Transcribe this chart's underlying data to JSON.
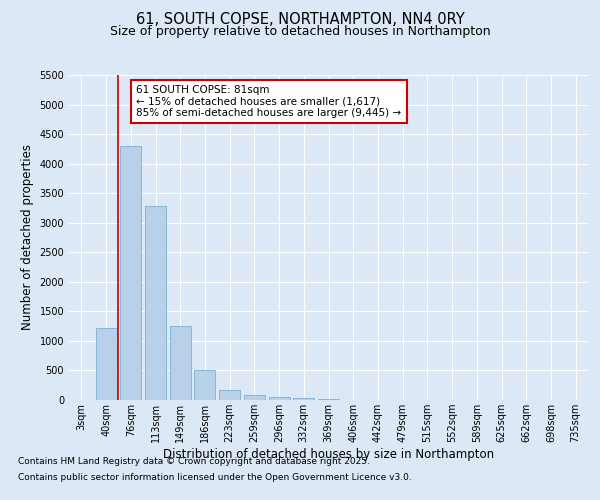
{
  "title_line1": "61, SOUTH COPSE, NORTHAMPTON, NN4 0RY",
  "title_line2": "Size of property relative to detached houses in Northampton",
  "xlabel": "Distribution of detached houses by size in Northampton",
  "ylabel": "Number of detached properties",
  "categories": [
    "3sqm",
    "40sqm",
    "76sqm",
    "113sqm",
    "149sqm",
    "186sqm",
    "223sqm",
    "259sqm",
    "296sqm",
    "332sqm",
    "369sqm",
    "406sqm",
    "442sqm",
    "479sqm",
    "515sqm",
    "552sqm",
    "589sqm",
    "625sqm",
    "662sqm",
    "698sqm",
    "735sqm"
  ],
  "values": [
    0,
    1220,
    4300,
    3280,
    1250,
    500,
    175,
    90,
    55,
    30,
    15,
    5,
    0,
    0,
    0,
    0,
    0,
    0,
    0,
    0,
    0
  ],
  "bar_color": "#b8d0e8",
  "bar_edge_color": "#7aafd4",
  "vline_x_index": 1.5,
  "vline_color": "#cc0000",
  "ylim": [
    0,
    5500
  ],
  "yticks": [
    0,
    500,
    1000,
    1500,
    2000,
    2500,
    3000,
    3500,
    4000,
    4500,
    5000,
    5500
  ],
  "annotation_text": "61 SOUTH COPSE: 81sqm\n← 15% of detached houses are smaller (1,617)\n85% of semi-detached houses are larger (9,445) →",
  "annotation_box_color": "#ffffff",
  "annotation_box_edge_color": "#cc0000",
  "footer_line1": "Contains HM Land Registry data © Crown copyright and database right 2025.",
  "footer_line2": "Contains public sector information licensed under the Open Government Licence v3.0.",
  "background_color": "#dce8f5",
  "plot_background_color": "#dce8f5",
  "grid_color": "#ffffff",
  "title_fontsize": 10.5,
  "subtitle_fontsize": 9,
  "axis_label_fontsize": 8.5,
  "tick_fontsize": 7,
  "annotation_fontsize": 7.5,
  "footer_fontsize": 6.5
}
